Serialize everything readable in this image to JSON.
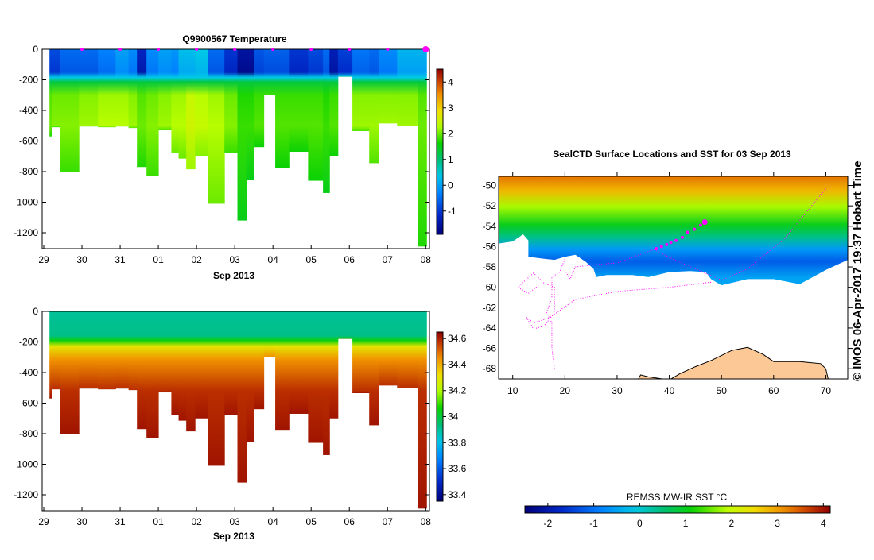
{
  "chart_data": [
    {
      "type": "heatmap",
      "title": "Q9900567  Temperature",
      "xlabel": "Sep 2013",
      "ylabel": "",
      "x_ticks": [
        "29",
        "30",
        "31",
        "01",
        "02",
        "03",
        "04",
        "05",
        "06",
        "07",
        "08"
      ],
      "y_ticks": [
        "0",
        "-200",
        "-400",
        "-600",
        "-800",
        "-1000",
        "-1200"
      ],
      "ylim": [
        -1300,
        0
      ],
      "colorbar": {
        "ticks": [
          "4",
          "3",
          "2",
          "1",
          "0",
          "-1"
        ],
        "range": [
          -1.9,
          4.5
        ]
      },
      "profile_edges_days": [
        0.15,
        0.21,
        0.42,
        0.92,
        1.42,
        1.88,
        2.22,
        2.44,
        2.69,
        3.0,
        3.34,
        3.53,
        3.73,
        3.96,
        4.3,
        4.73,
        5.07,
        5.3,
        5.5,
        5.76,
        6.06,
        6.44,
        6.92,
        7.31,
        7.48,
        7.7,
        8.08,
        8.52,
        8.77,
        9.25,
        9.79,
        10.02
      ],
      "profile_max_depth": [
        -570,
        -510,
        -800,
        -505,
        -510,
        -505,
        -515,
        -770,
        -830,
        -530,
        -680,
        -715,
        -785,
        -700,
        -1010,
        -680,
        -1120,
        -855,
        -640,
        -300,
        -775,
        -670,
        -860,
        -940,
        -700,
        -180,
        -535,
        -745,
        -485,
        -500,
        -1290
      ],
      "surface_values": [
        -0.8,
        -0.8,
        -0.5,
        -0.5,
        -0.3,
        0.0,
        -0.2,
        -1.2,
        -0.2,
        0.0,
        -0.1,
        0.3,
        0.3,
        0.4,
        -0.5,
        -1.0,
        -1.5,
        -1.5,
        -0.7,
        -0.6,
        -0.6,
        -1.0,
        -0.8,
        -0.5,
        -1.3,
        -0.9,
        -0.4,
        -0.5,
        -0.2,
        0.2,
        0.2
      ],
      "deep_values": [
        2.0,
        2.1,
        2.1,
        2.2,
        2.3,
        2.3,
        2.2,
        2.0,
        2.1,
        2.2,
        2.3,
        2.3,
        2.5,
        2.4,
        2.3,
        2.1,
        1.8,
        1.8,
        1.9,
        1.9,
        1.9,
        1.9,
        1.9,
        1.8,
        1.9,
        1.9,
        2.2,
        2.2,
        2.2,
        2.2,
        2.0
      ]
    },
    {
      "type": "heatmap",
      "title": "",
      "xlabel": "Sep 2013",
      "x_ticks": [
        "29",
        "30",
        "31",
        "01",
        "02",
        "03",
        "04",
        "05",
        "06",
        "07",
        "08"
      ],
      "y_ticks": [
        "0",
        "-200",
        "-400",
        "-600",
        "-800",
        "-1000",
        "-1200"
      ],
      "ylim": [
        -1300,
        0
      ],
      "colorbar": {
        "ticks": [
          "34.6",
          "34.4",
          "34.2",
          "34",
          "33.8",
          "33.6",
          "33.4"
        ],
        "range": [
          33.35,
          34.65
        ]
      },
      "surface_value": 33.9,
      "deep_value": 34.62
    },
    {
      "type": "heatmap",
      "title": "SealCTD Surface Locations and SST for 03 Sep 2013",
      "x_ticks": [
        "10",
        "20",
        "30",
        "40",
        "50",
        "60",
        "70"
      ],
      "y_ticks": [
        "-50",
        "-52",
        "-54",
        "-56",
        "-58",
        "-60",
        "-62",
        "-64",
        "-66",
        "-68"
      ],
      "xlim": [
        7.3,
        74.2
      ],
      "ylim": [
        -69.0,
        -49.1
      ],
      "colorbar": {
        "label": "REMSS MW-IR SST °C",
        "ticks": [
          "-2",
          "-1",
          "0",
          "1",
          "2",
          "3",
          "4"
        ],
        "range": [
          -2.5,
          4.15
        ]
      },
      "track_recent": [
        [
          37.5,
          -56.2
        ],
        [
          38.5,
          -56.0
        ],
        [
          39.5,
          -55.8
        ],
        [
          40.3,
          -55.6
        ],
        [
          41.3,
          -55.4
        ],
        [
          42.5,
          -55.1
        ],
        [
          43.5,
          -54.6
        ],
        [
          44.8,
          -54.3
        ],
        [
          46.0,
          -53.9
        ]
      ],
      "track_latest": [
        46.8,
        -53.6
      ],
      "track_older": [
        [
          [
            70,
            -50.3
          ],
          [
            66,
            -52.8
          ],
          [
            62,
            -55.3
          ],
          [
            59,
            -56.5
          ],
          [
            55,
            -58.2
          ],
          [
            50,
            -59.3
          ],
          [
            46,
            -58.4
          ],
          [
            41,
            -57.3
          ],
          [
            37,
            -56.3
          ],
          [
            30,
            -57.6
          ],
          [
            25.5,
            -57.8
          ],
          [
            22,
            -58.0
          ],
          [
            21,
            -59.2
          ],
          [
            20,
            -58.3
          ],
          [
            20,
            -57.2
          ],
          [
            19,
            -58.5
          ],
          [
            17.5,
            -59
          ],
          [
            17.5,
            -61
          ],
          [
            16.5,
            -62.5
          ],
          [
            17.5,
            -63.5
          ],
          [
            17.5,
            -66
          ],
          [
            18,
            -68
          ]
        ],
        [
          [
            48,
            -59.5
          ],
          [
            40,
            -60.0
          ],
          [
            30,
            -60.4
          ],
          [
            22,
            -61.2
          ],
          [
            17,
            -63
          ],
          [
            14,
            -63.5
          ],
          [
            12.5,
            -62.9
          ],
          [
            14,
            -64.1
          ],
          [
            16,
            -63.8
          ],
          [
            18,
            -62.5
          ],
          [
            18,
            -60
          ],
          [
            16,
            -59.6
          ],
          [
            14,
            -58.6
          ],
          [
            12,
            -59.5
          ],
          [
            11,
            -60
          ],
          [
            13,
            -60.6
          ],
          [
            15,
            -59.8
          ]
        ]
      ],
      "footer": "© IMOS 06-Apr-2017 19:37 Hobart Time"
    }
  ],
  "colors": {
    "track": "#ff00ff",
    "land": "#fcc896",
    "ice": "#ffffff"
  }
}
